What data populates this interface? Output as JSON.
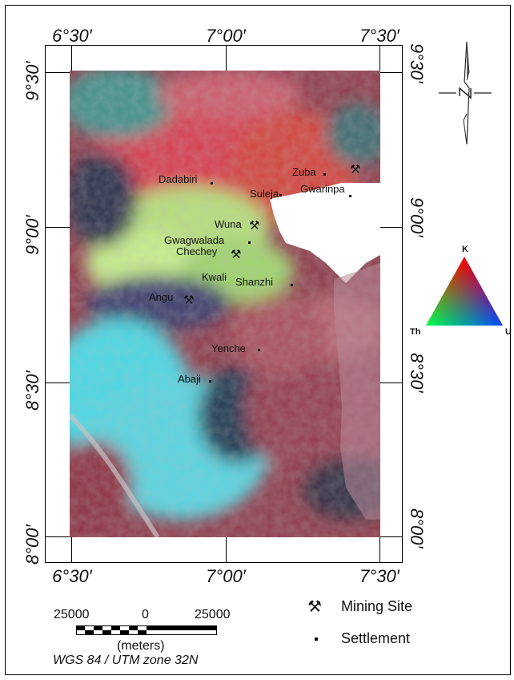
{
  "map": {
    "lon_top": [
      "6°30′",
      "7°00′",
      "7°30′"
    ],
    "lon_bottom": [
      "6°30′",
      "7°00′",
      "7°30′"
    ],
    "lat_left": [
      "9°30′",
      "9°00′",
      "8°30′",
      "8°00′"
    ],
    "lat_right": [
      "9°30′",
      "9°00′",
      "8°30′",
      "8°00′"
    ],
    "places": [
      {
        "name": "Dadabiri",
        "settlement": true,
        "mining": false
      },
      {
        "name": "Zuba",
        "settlement": true,
        "mining": false
      },
      {
        "name": "Gwarinpa",
        "settlement": true,
        "mining": true
      },
      {
        "name": "Suleja",
        "settlement": true,
        "mining": false
      },
      {
        "name": "Wuna",
        "settlement": false,
        "mining": true
      },
      {
        "name": "Gwagwalada",
        "settlement": true,
        "mining": false
      },
      {
        "name": "Chechey",
        "settlement": false,
        "mining": true
      },
      {
        "name": "Kwali",
        "settlement": false,
        "mining": false
      },
      {
        "name": "Shanzhi",
        "settlement": true,
        "mining": false
      },
      {
        "name": "Angu",
        "settlement": false,
        "mining": true
      },
      {
        "name": "Yenche",
        "settlement": true,
        "mining": false
      },
      {
        "name": "Abaji",
        "settlement": true,
        "mining": false
      }
    ]
  },
  "ternary": {
    "top": "K",
    "left": "Th",
    "right": "U",
    "colors": [
      "#ff0000",
      "#00ff00",
      "#0000ff"
    ]
  },
  "legend": {
    "mining_symbol": "⚒",
    "mining_label": "Mining Site",
    "settlement_label": "Settlement"
  },
  "scale": {
    "left": "25000",
    "mid": "0",
    "right": "25000",
    "unit": "(meters)"
  },
  "projection": "WGS 84 / UTM zone 32N"
}
